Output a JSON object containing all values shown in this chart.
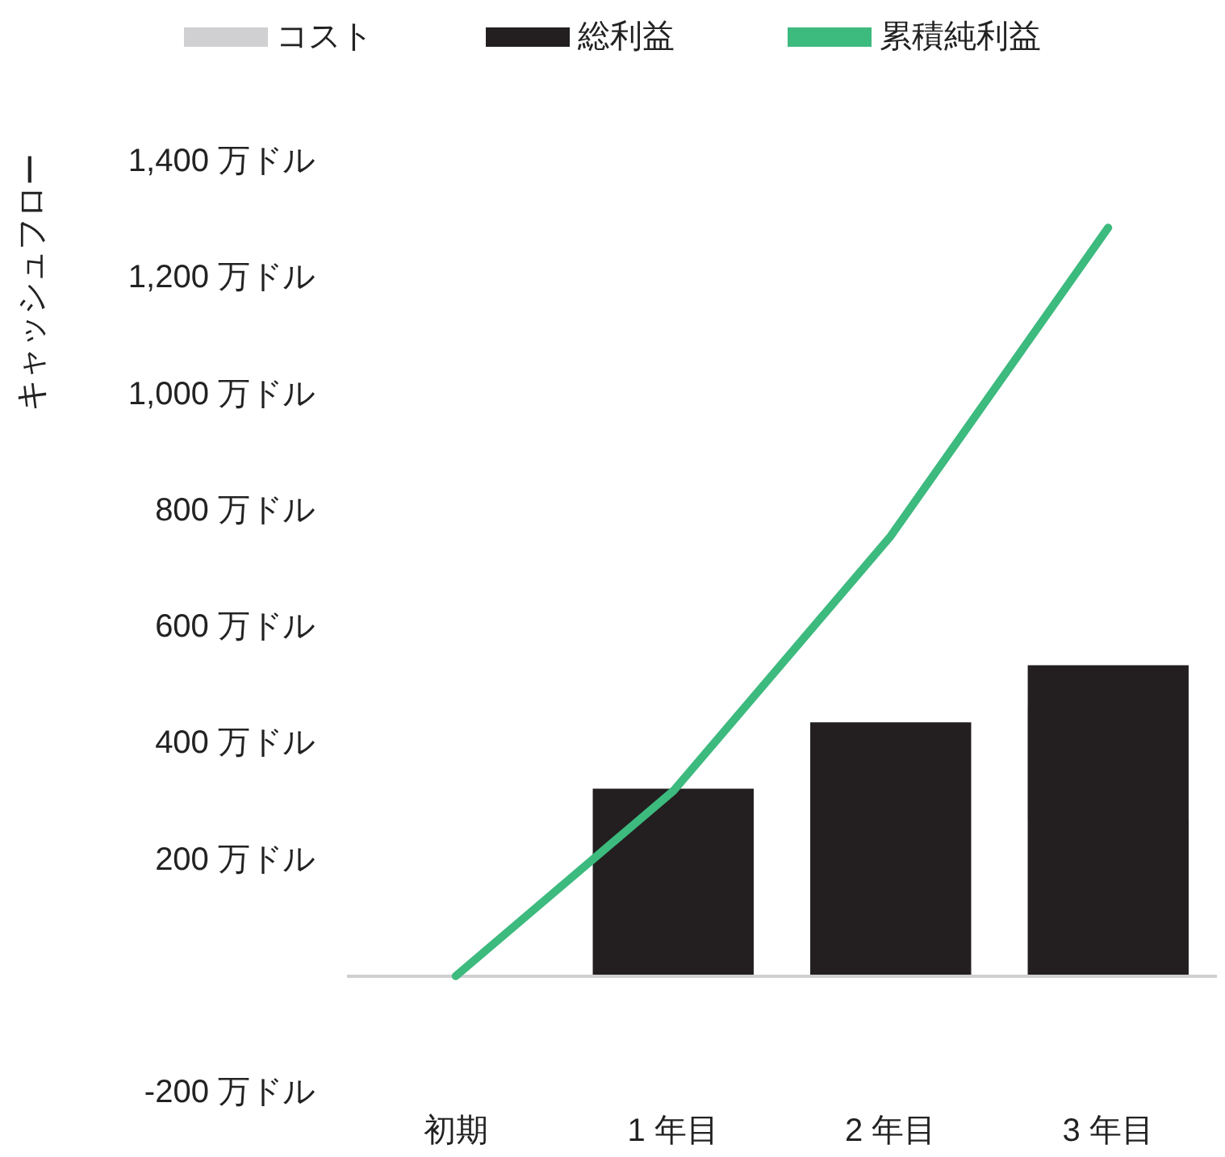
{
  "chart_data": {
    "type": "bar",
    "ylabel": "キャッシュフロー",
    "categories": [
      "初期",
      "1 年目",
      "2 年目",
      "3 年目"
    ],
    "series": [
      {
        "name": "コスト",
        "color": "#d0d0d2",
        "values": [
          -3,
          0,
          0,
          0
        ]
      },
      {
        "name": "総利益",
        "color": "#231f20",
        "values": [
          0,
          322,
          436,
          534
        ]
      },
      {
        "name": "累積純利益",
        "type": "line",
        "color": "#3dba7e",
        "values": [
          0,
          318,
          756,
          1286
        ]
      }
    ],
    "stacked": true,
    "ylim": [
      -200,
      1400
    ],
    "yticks": [
      {
        "value": -200,
        "label": "-200 万ドル"
      },
      {
        "value": 0,
        "label": null
      },
      {
        "value": 200,
        "label": "200 万ドル"
      },
      {
        "value": 400,
        "label": "400 万ドル"
      },
      {
        "value": 600,
        "label": "600 万ドル"
      },
      {
        "value": 800,
        "label": "800 万ドル"
      },
      {
        "value": 1000,
        "label": "1,000 万ドル"
      },
      {
        "value": 1200,
        "label": "1,200 万ドル"
      },
      {
        "value": 1400,
        "label": "1,400 万ドル"
      }
    ],
    "ref_lines": [
      {
        "axis": "y",
        "value": 0,
        "color": "#d0d0d2"
      }
    ],
    "grid": false,
    "legend": "top",
    "marker": "none"
  }
}
